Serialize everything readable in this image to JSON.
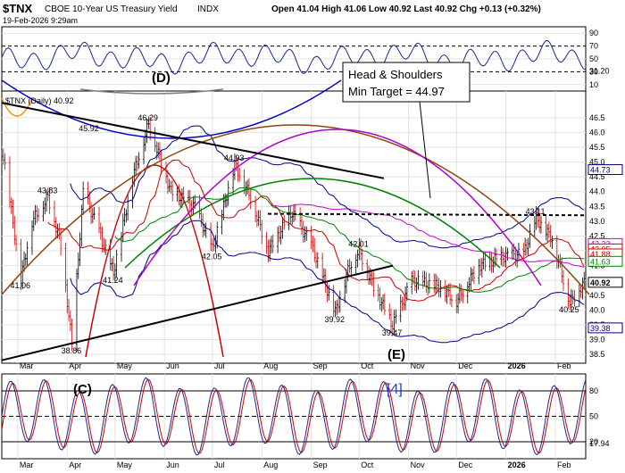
{
  "header": {
    "symbol": "$TNX",
    "description": "CBOE 10-Year US Treasury Yield",
    "exchange": "INDX",
    "datetime": "19-Feb-2026 9:29am",
    "ohlc": "Open 41.04  High 41.06  Low 40.92  Last 40.92  Chg +0.13 (+0.32%)",
    "legend": "$TNX (Daily) 40.92"
  },
  "chart_data": [
    {
      "type": "line",
      "panel": "RSI",
      "ylim": [
        0,
        100
      ],
      "y_ticks": [
        10,
        30,
        50,
        70,
        90
      ],
      "right_labels": [
        "31.20"
      ],
      "grid": true
    },
    {
      "type": "candlestick",
      "panel": "price",
      "title": "$TNX (Daily) 40.92",
      "x_ticks": [
        "Mar",
        "Apr",
        "May",
        "Jun",
        "Jul",
        "Aug",
        "Sep",
        "Oct",
        "Nov",
        "Dec",
        "2026",
        "Feb"
      ],
      "ylim": [
        38.2,
        47.4
      ],
      "y_ticks": [
        38.5,
        39.0,
        39.5,
        40.0,
        40.5,
        41.0,
        41.5,
        42.0,
        42.5,
        43.0,
        43.5,
        44.0,
        44.5,
        45.0,
        45.5,
        46.0,
        46.5
      ],
      "close_path": [
        {
          "x": "2025-02-20",
          "y": 45.2
        },
        {
          "x": "2025-03-03",
          "y": 41.06
        },
        {
          "x": "2025-03-10",
          "y": 43.0
        },
        {
          "x": "2025-03-20",
          "y": 43.83
        },
        {
          "x": "2025-03-28",
          "y": 42.2
        },
        {
          "x": "2025-04-04",
          "y": 38.86
        },
        {
          "x": "2025-04-11",
          "y": 44.0
        },
        {
          "x": "2025-04-20",
          "y": 42.8
        },
        {
          "x": "2025-04-30",
          "y": 41.24
        },
        {
          "x": "2025-05-12",
          "y": 44.5
        },
        {
          "x": "2025-05-22",
          "y": 46.29
        },
        {
          "x": "2025-06-05",
          "y": 44.0
        },
        {
          "x": "2025-06-20",
          "y": 43.5
        },
        {
          "x": "2025-07-01",
          "y": 42.05
        },
        {
          "x": "2025-07-15",
          "y": 44.93
        },
        {
          "x": "2025-07-25",
          "y": 43.8
        },
        {
          "x": "2025-08-05",
          "y": 42.0
        },
        {
          "x": "2025-08-20",
          "y": 43.3
        },
        {
          "x": "2025-09-01",
          "y": 42.2
        },
        {
          "x": "2025-09-16",
          "y": 39.92
        },
        {
          "x": "2025-09-25",
          "y": 41.5
        },
        {
          "x": "2025-10-01",
          "y": 42.01
        },
        {
          "x": "2025-10-10",
          "y": 40.8
        },
        {
          "x": "2025-10-22",
          "y": 39.47
        },
        {
          "x": "2025-11-03",
          "y": 41.0
        },
        {
          "x": "2025-11-20",
          "y": 40.8
        },
        {
          "x": "2025-12-01",
          "y": 40.3
        },
        {
          "x": "2025-12-15",
          "y": 41.5
        },
        {
          "x": "2025-12-31",
          "y": 41.8
        },
        {
          "x": "2026-01-12",
          "y": 41.9
        },
        {
          "x": "2026-01-20",
          "y": 43.11
        },
        {
          "x": "2026-01-30",
          "y": 42.4
        },
        {
          "x": "2026-02-10",
          "y": 40.25
        },
        {
          "x": "2026-02-19",
          "y": 40.92
        }
      ],
      "point_labels": [
        {
          "text": "41.06",
          "x": "2025-03-03",
          "y": 41.06
        },
        {
          "text": "43.83",
          "x": "2025-03-20",
          "y": 43.83
        },
        {
          "text": "45.92",
          "x": "2025-04-15",
          "y": 45.92
        },
        {
          "text": "38.86",
          "x": "2025-04-04",
          "y": 38.86
        },
        {
          "text": "41.24",
          "x": "2025-04-30",
          "y": 41.24
        },
        {
          "text": "46.29",
          "x": "2025-05-22",
          "y": 46.29
        },
        {
          "text": "44.93",
          "x": "2025-07-15",
          "y": 44.93
        },
        {
          "text": "42.05",
          "x": "2025-07-01",
          "y": 42.05
        },
        {
          "text": "39.92",
          "x": "2025-09-16",
          "y": 39.92
        },
        {
          "text": "42.01",
          "x": "2025-10-01",
          "y": 42.01
        },
        {
          "text": "39.47",
          "x": "2025-10-22",
          "y": 39.47
        },
        {
          "text": "43.11",
          "x": "2026-01-20",
          "y": 43.11
        },
        {
          "text": "40.25",
          "x": "2026-02-10",
          "y": 40.25
        }
      ],
      "right_labels": [
        {
          "text": "44.73",
          "y": 44.73,
          "color": "#00008b"
        },
        {
          "text": "42.23",
          "y": 42.23,
          "color": "#cc00cc"
        },
        {
          "text": "42.05",
          "y": 42.05,
          "color": "#cc0000"
        },
        {
          "text": "41.88",
          "y": 41.88,
          "color": "#cc0000"
        },
        {
          "text": "41.63",
          "y": 41.63,
          "color": "#008000"
        },
        {
          "text": "40.92",
          "y": 40.92,
          "color": "#000000"
        },
        {
          "text": "39.38",
          "y": 39.38,
          "color": "#00008b"
        }
      ],
      "annotations": {
        "wave_d": "(D)",
        "wave_e": "(E)",
        "head_shoulders_line1": "Head & Shoulders",
        "head_shoulders_line2": "Min Target = 44.97"
      },
      "colors": {
        "up": "#000000",
        "down": "#cc0000",
        "upper_band": "#00008b",
        "ma50": "#cc0000",
        "ma200": "#cc00cc",
        "ma_green": "#008000"
      },
      "grid": true
    },
    {
      "type": "line",
      "panel": "stochastic",
      "ylim": [
        0,
        100
      ],
      "y_ticks": [
        20,
        50,
        80
      ],
      "right_labels": [
        "17.94"
      ],
      "annotations": {
        "wave_c": "(C)",
        "cycle_4": "[4]"
      },
      "grid": true
    }
  ]
}
